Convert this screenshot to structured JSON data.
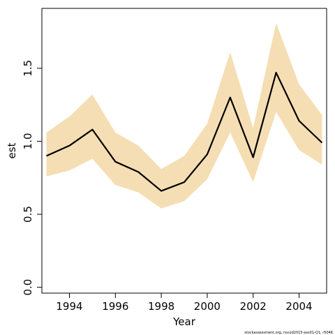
{
  "chart_data": {
    "type": "line",
    "title": "",
    "xlabel": "Year",
    "ylabel": "est",
    "x": [
      1993,
      1994,
      1995,
      1996,
      1997,
      1998,
      1999,
      2000,
      2001,
      2002,
      2003,
      2004,
      2005
    ],
    "series": [
      {
        "values": [
          0.9,
          0.97,
          1.08,
          0.86,
          0.79,
          0.66,
          0.72,
          0.91,
          1.3,
          0.89,
          1.47,
          1.14,
          0.99
        ],
        "lower": [
          0.76,
          0.8,
          0.88,
          0.7,
          0.65,
          0.54,
          0.59,
          0.74,
          1.06,
          0.72,
          1.2,
          0.94,
          0.84
        ],
        "upper": [
          1.06,
          1.17,
          1.32,
          1.06,
          0.97,
          0.81,
          0.9,
          1.12,
          1.61,
          1.09,
          1.81,
          1.39,
          1.18
        ]
      }
    ],
    "xlim": [
      1992.8,
      2005.2
    ],
    "ylim": [
      -0.04,
      1.91
    ],
    "xticks": [
      1994,
      1996,
      1998,
      2000,
      2002,
      2004
    ],
    "yticks": [
      0.0,
      0.5,
      1.0,
      1.5
    ],
    "ytick_labels": [
      "0.0",
      "0.5",
      "1.0",
      "1.5"
    ],
    "grid": false,
    "colors": {
      "line": "#000000",
      "band": "#f5deb3"
    }
  },
  "credit": "stockassessment.org, nscod2015-ass01-Q1, r5046"
}
